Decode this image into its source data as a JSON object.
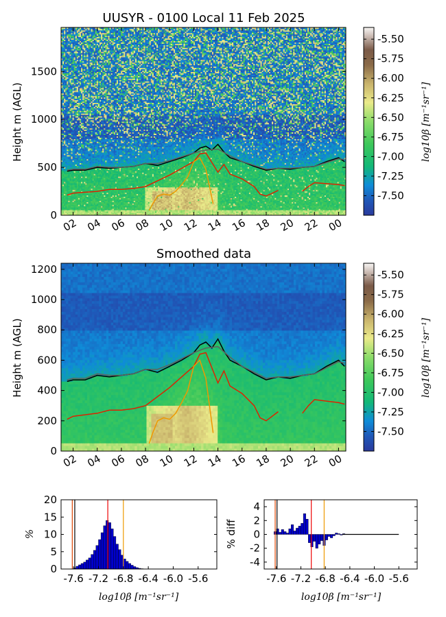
{
  "chart_data": [
    {
      "type": "heatmap",
      "title": "UUSYR - 0100 Local 11 Feb 2025",
      "ylabel": "Height m (AGL)",
      "ylim": [
        0,
        1960
      ],
      "yticks": [
        0,
        500,
        1000,
        1500
      ],
      "xticks": [
        "02",
        "04",
        "06",
        "08",
        "10",
        "12",
        "14",
        "16",
        "18",
        "20",
        "22",
        "00"
      ],
      "colorbar": {
        "label": "log10β [m⁻¹sr⁻¹]",
        "range": [
          -7.75,
          -5.35
        ],
        "ticks": [
          "-5.50",
          "-5.75",
          "-6.00",
          "-6.25",
          "-6.50",
          "-6.75",
          "-7.00",
          "-7.25",
          "-7.50"
        ]
      },
      "series": [
        {
          "color": "#000000",
          "x": [
            1.5,
            2,
            3,
            4,
            5,
            6,
            7,
            8,
            9,
            10,
            11,
            12,
            12.5,
            13,
            13.5,
            14,
            14.5,
            15,
            16,
            17,
            18,
            19,
            20,
            21,
            22,
            23,
            24,
            24.5
          ],
          "y": [
            460,
            470,
            470,
            500,
            490,
            500,
            510,
            540,
            520,
            560,
            600,
            650,
            700,
            720,
            680,
            740,
            660,
            600,
            560,
            510,
            470,
            490,
            480,
            500,
            510,
            560,
            600,
            560
          ]
        },
        {
          "color": "#606060",
          "x": [
            1.5,
            2,
            3,
            4,
            5,
            6,
            7,
            8,
            9,
            10,
            11,
            12,
            13,
            14,
            15,
            16,
            17,
            18,
            19,
            20,
            21,
            22,
            23,
            24,
            24.5
          ],
          "y": [
            470,
            480,
            480,
            510,
            500,
            500,
            510,
            540,
            540,
            570,
            610,
            650,
            680,
            690,
            620,
            560,
            520,
            480,
            490,
            490,
            500,
            510,
            550,
            590,
            580
          ]
        },
        {
          "color": "#dd2200",
          "x": [
            1.5,
            2,
            3,
            4,
            5,
            6,
            7,
            8,
            9,
            10,
            11,
            12,
            12.5,
            13,
            13.5,
            14,
            14.5,
            15,
            16,
            17,
            17.5,
            18,
            19
          ],
          "y": [
            210,
            230,
            240,
            250,
            270,
            270,
            280,
            300,
            360,
            420,
            490,
            560,
            640,
            650,
            550,
            450,
            530,
            430,
            380,
            300,
            220,
            200,
            260
          ]
        },
        {
          "color": "#dd2200",
          "x": [
            21,
            21.5,
            22,
            23,
            24,
            24.5
          ],
          "y": [
            250,
            300,
            340,
            330,
            320,
            310
          ]
        },
        {
          "color": "#ee9900",
          "x": [
            8.3,
            8.6,
            9,
            9.5,
            10,
            10.5,
            11,
            11.5,
            12,
            12.5,
            13,
            13.3,
            13.6
          ],
          "y": [
            50,
            120,
            200,
            220,
            210,
            250,
            320,
            400,
            560,
            600,
            480,
            300,
            120
          ]
        }
      ]
    },
    {
      "type": "heatmap",
      "title": "Smoothed data",
      "ylabel": "Height m (AGL)",
      "ylim": [
        0,
        1240
      ],
      "yticks": [
        0,
        200,
        400,
        600,
        800,
        1000,
        1200
      ],
      "xticks": [
        "02",
        "04",
        "06",
        "08",
        "10",
        "12",
        "14",
        "16",
        "18",
        "20",
        "22",
        "00"
      ],
      "colorbar": {
        "label": "log10β [m⁻¹sr⁻¹]",
        "range": [
          -7.75,
          -5.35
        ],
        "ticks": [
          "-5.50",
          "-5.75",
          "-6.00",
          "-6.25",
          "-6.50",
          "-6.75",
          "-7.00",
          "-7.25",
          "-7.50"
        ]
      },
      "series": [
        {
          "color": "#000000",
          "x": [
            1.5,
            2,
            3,
            4,
            5,
            6,
            7,
            8,
            9,
            10,
            11,
            12,
            12.5,
            13,
            13.5,
            14,
            14.5,
            15,
            16,
            17,
            18,
            19,
            20,
            21,
            22,
            23,
            24,
            24.5
          ],
          "y": [
            460,
            470,
            470,
            500,
            490,
            500,
            510,
            540,
            520,
            560,
            600,
            650,
            700,
            720,
            680,
            740,
            660,
            600,
            560,
            510,
            470,
            490,
            480,
            500,
            510,
            560,
            600,
            560
          ]
        },
        {
          "color": "#606060",
          "x": [
            1.5,
            2,
            3,
            4,
            5,
            6,
            7,
            8,
            9,
            10,
            11,
            12,
            13,
            14,
            15,
            16,
            17,
            18,
            19,
            20,
            21,
            22,
            23,
            24,
            24.5
          ],
          "y": [
            470,
            480,
            480,
            510,
            500,
            500,
            510,
            540,
            540,
            570,
            610,
            650,
            680,
            690,
            620,
            560,
            520,
            480,
            490,
            490,
            500,
            510,
            550,
            590,
            580
          ]
        },
        {
          "color": "#dd2200",
          "x": [
            1.5,
            2,
            3,
            4,
            5,
            6,
            7,
            8,
            9,
            10,
            11,
            12,
            12.5,
            13,
            13.5,
            14,
            14.5,
            15,
            16,
            17,
            17.5,
            18,
            19
          ],
          "y": [
            210,
            230,
            240,
            250,
            270,
            270,
            280,
            300,
            360,
            420,
            490,
            560,
            640,
            650,
            550,
            450,
            530,
            430,
            380,
            300,
            220,
            200,
            260
          ]
        },
        {
          "color": "#dd2200",
          "x": [
            21,
            21.5,
            22,
            23,
            24,
            24.5
          ],
          "y": [
            250,
            300,
            340,
            330,
            320,
            310
          ]
        },
        {
          "color": "#ee9900",
          "x": [
            8.3,
            8.6,
            9,
            9.5,
            10,
            10.5,
            11,
            11.5,
            12,
            12.5,
            13,
            13.3,
            13.6
          ],
          "y": [
            50,
            120,
            200,
            220,
            210,
            250,
            320,
            400,
            560,
            600,
            480,
            300,
            120
          ]
        }
      ]
    },
    {
      "type": "bar",
      "ylabel": "%",
      "xlabel": "log10β [m⁻¹sr⁻¹]",
      "xlim": [
        -7.8,
        -5.3
      ],
      "ylim": [
        0,
        20
      ],
      "xticks": [
        "-7.6",
        "-7.2",
        "-6.8",
        "-6.4",
        "-6.0",
        "-5.6"
      ],
      "yticks": [
        0,
        5,
        10,
        15,
        20
      ],
      "bin_width": 0.04,
      "x": [
        -7.6,
        -7.56,
        -7.52,
        -7.48,
        -7.44,
        -7.4,
        -7.36,
        -7.32,
        -7.28,
        -7.24,
        -7.2,
        -7.16,
        -7.12,
        -7.08,
        -7.04,
        -7.0,
        -6.96,
        -6.92,
        -6.88,
        -6.84,
        -6.8,
        -6.76,
        -6.72,
        -6.68,
        -6.64,
        -6.6,
        -6.56,
        -6.52
      ],
      "values": [
        0.3,
        0.8,
        1.2,
        1.6,
        2.0,
        2.6,
        3.2,
        4.2,
        5.4,
        6.8,
        8.5,
        10.5,
        12.5,
        14.0,
        13.4,
        11.6,
        9.4,
        7.2,
        5.6,
        4.0,
        2.9,
        2.2,
        1.6,
        1.1,
        0.7,
        0.4,
        0.2,
        0.1
      ],
      "vlines": [
        {
          "x": -7.62,
          "color": "#dd4400"
        },
        {
          "x": -7.58,
          "color": "#000000"
        },
        {
          "x": -7.05,
          "color": "#ee0000"
        },
        {
          "x": -6.8,
          "color": "#ee9900"
        }
      ]
    },
    {
      "type": "bar",
      "ylabel": "% diff",
      "xlabel": "log10β [m⁻¹sr⁻¹]",
      "xlim": [
        -7.8,
        -5.3
      ],
      "ylim": [
        -5,
        5
      ],
      "xticks": [
        "-7.6",
        "-7.2",
        "-6.8",
        "-6.4",
        "-6.0",
        "-5.6"
      ],
      "yticks": [
        -4,
        -2,
        0,
        2,
        4
      ],
      "bin_width": 0.04,
      "x": [
        -7.64,
        -7.6,
        -7.56,
        -7.52,
        -7.48,
        -7.44,
        -7.4,
        -7.36,
        -7.32,
        -7.28,
        -7.24,
        -7.2,
        -7.16,
        -7.12,
        -7.08,
        -7.04,
        -7.0,
        -6.96,
        -6.92,
        -6.88,
        -6.84,
        -6.8,
        -6.76,
        -6.72,
        -6.68,
        -6.64,
        -6.6,
        -6.56,
        -6.52
      ],
      "values": [
        0.4,
        0.8,
        0.3,
        0.7,
        0.4,
        0.2,
        0.8,
        1.4,
        0.5,
        0.9,
        1.2,
        1.6,
        3.0,
        2.2,
        -1.2,
        -1.8,
        -1.0,
        -2.0,
        -1.4,
        -0.9,
        -1.6,
        -0.8,
        -0.3,
        -0.5,
        -0.2,
        0.2,
        0.1,
        -0.1,
        0.1
      ],
      "vlines": [
        {
          "x": -7.62,
          "color": "#dd4400"
        },
        {
          "x": -7.59,
          "color": "#000000"
        },
        {
          "x": -7.03,
          "color": "#ee0000"
        },
        {
          "x": -6.82,
          "color": "#ee9900"
        }
      ]
    }
  ]
}
